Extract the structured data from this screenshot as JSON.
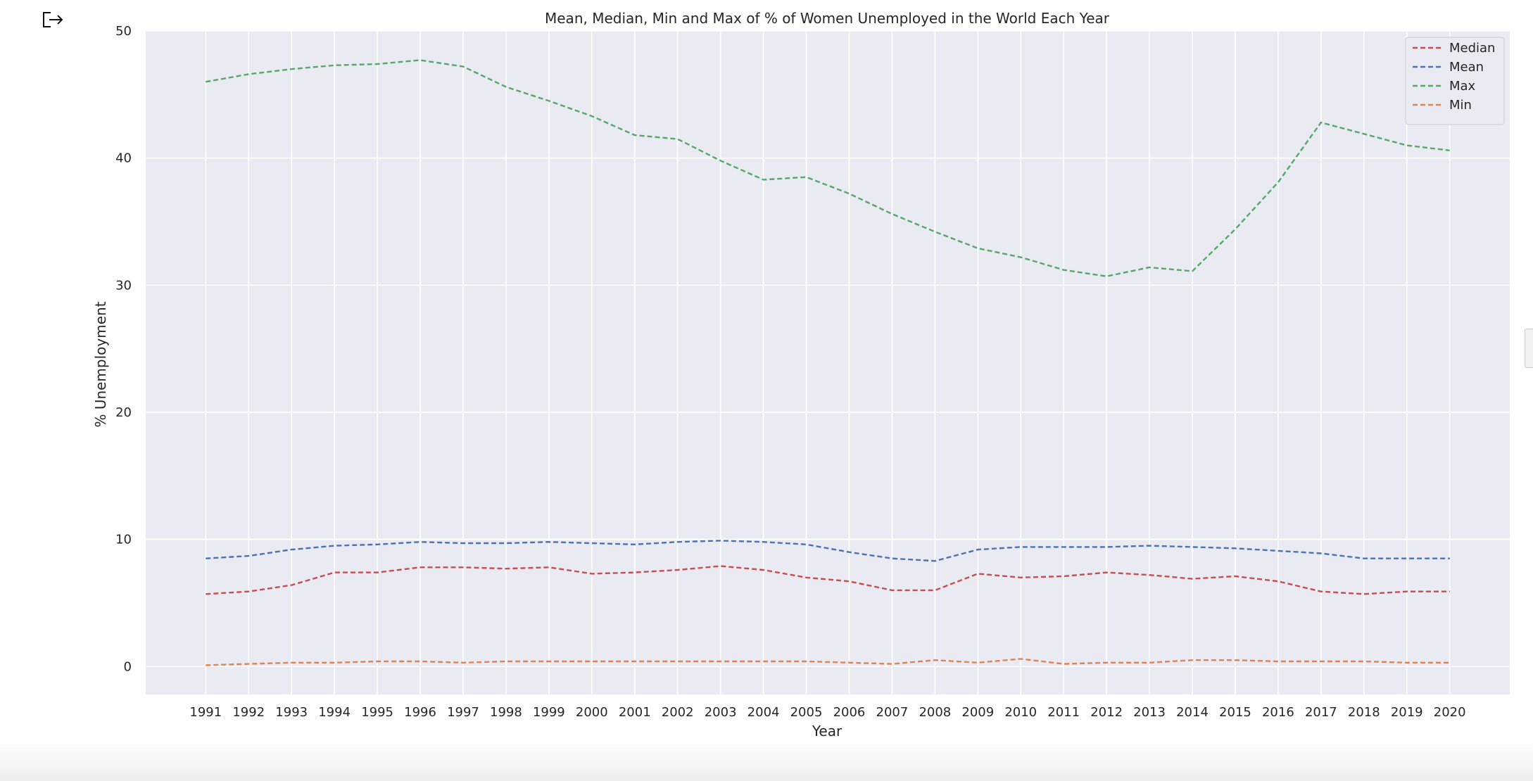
{
  "chart_data": {
    "type": "line",
    "title": "Mean, Median, Min and Max of % of Women Unemployed in the World Each Year",
    "xlabel": "Year",
    "ylabel": "% Unemployment",
    "ylim": [
      -2.2,
      50
    ],
    "yticks": [
      0,
      10,
      20,
      30,
      40,
      50
    ],
    "grid": true,
    "legend_position": "top-right",
    "x": [
      1991,
      1992,
      1993,
      1994,
      1995,
      1996,
      1997,
      1998,
      1999,
      2000,
      2001,
      2002,
      2003,
      2004,
      2005,
      2006,
      2007,
      2008,
      2009,
      2010,
      2011,
      2012,
      2013,
      2014,
      2015,
      2016,
      2017,
      2018,
      2019,
      2020
    ],
    "series": [
      {
        "name": "Median",
        "color": "#C44E52",
        "values": [
          5.7,
          5.9,
          6.4,
          7.4,
          7.4,
          7.8,
          7.8,
          7.7,
          7.8,
          7.3,
          7.4,
          7.6,
          7.9,
          7.6,
          7.0,
          6.7,
          6.0,
          6.0,
          7.3,
          7.0,
          7.1,
          7.4,
          7.2,
          6.9,
          7.1,
          6.7,
          5.9,
          5.7,
          5.9,
          5.9
        ]
      },
      {
        "name": "Mean",
        "color": "#4C72B0",
        "values": [
          8.5,
          8.7,
          9.2,
          9.5,
          9.6,
          9.8,
          9.7,
          9.7,
          9.8,
          9.7,
          9.6,
          9.8,
          9.9,
          9.8,
          9.6,
          9.0,
          8.5,
          8.3,
          9.2,
          9.4,
          9.4,
          9.4,
          9.5,
          9.4,
          9.3,
          9.1,
          8.9,
          8.5,
          8.5,
          8.5
        ]
      },
      {
        "name": "Max",
        "color": "#55A868",
        "values": [
          46.0,
          46.6,
          47.0,
          47.3,
          47.4,
          47.7,
          47.2,
          45.6,
          44.5,
          43.3,
          41.8,
          41.5,
          39.8,
          38.3,
          38.5,
          37.2,
          35.6,
          34.2,
          32.9,
          32.2,
          31.2,
          30.7,
          31.4,
          31.1,
          34.4,
          38.1,
          42.8,
          41.9,
          41.0,
          40.6
        ]
      },
      {
        "name": "Min",
        "color": "#DD8452",
        "values": [
          0.1,
          0.2,
          0.3,
          0.3,
          0.4,
          0.4,
          0.3,
          0.4,
          0.4,
          0.4,
          0.4,
          0.4,
          0.4,
          0.4,
          0.4,
          0.3,
          0.2,
          0.5,
          0.3,
          0.6,
          0.2,
          0.3,
          0.3,
          0.5,
          0.5,
          0.4,
          0.4,
          0.4,
          0.3,
          0.3
        ]
      }
    ]
  }
}
